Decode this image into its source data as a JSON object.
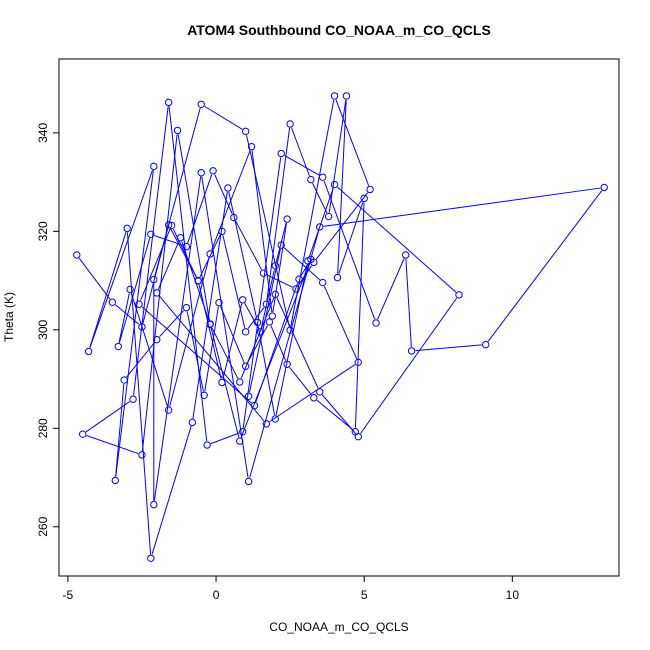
{
  "chart_data": {
    "type": "line",
    "title": "ATOM4 Southbound CO_NOAA_m_CO_QCLS",
    "xlabel": "CO_NOAA_m_CO_QCLS",
    "ylabel": "Theta (K)",
    "xlim": [
      -5.3,
      13.6
    ],
    "ylim": [
      250,
      355
    ],
    "x_ticks": [
      -5,
      0,
      5,
      10
    ],
    "y_ticks": [
      260,
      280,
      300,
      320,
      340
    ],
    "x_tick_labels": [
      "-5",
      "0",
      "5",
      "10"
    ],
    "y_tick_labels": [
      "260",
      "280",
      "300",
      "320",
      "340"
    ],
    "grid": false,
    "legend": "none",
    "marker": "open-circle",
    "color": "#0000ff",
    "series": [
      {
        "x": [
          -4.7,
          -3.5,
          -2.5,
          -1.6,
          -0.6,
          0.2,
          1.0,
          1.7,
          2.5,
          3.2,
          3.8,
          4.4,
          4.1,
          5.0,
          4.7,
          3.3,
          2.4,
          1.8,
          1.0,
          0.1,
          -0.4,
          -1.0,
          -2.0,
          -3.1,
          -3.4,
          -2.1,
          -4.3,
          -3.0,
          -2.2,
          -0.8,
          0.4,
          1.4,
          2.0,
          3.1,
          4.0,
          8.2,
          4.8,
          3.5,
          2.0,
          0.8,
          -0.2,
          -1.3,
          -2.5,
          -4.5,
          -2.8,
          -1.6,
          -0.3,
          0.9,
          2.2,
          3.6,
          5.4,
          6.4,
          6.6,
          9.1,
          13.1,
          3.5,
          1.1,
          -0.5,
          -2.1,
          -2.1,
          -0.5,
          1.0,
          2.5,
          4.0,
          5.2,
          3.3,
          2.7,
          1.6,
          0.6,
          -0.1,
          -1.0,
          -2.2,
          -3.3,
          -2.9,
          -1.6,
          -0.2,
          1.2,
          1.9,
          2.4,
          2.0,
          1.5,
          0.9,
          0.2,
          -0.6,
          -1.5,
          -2.6,
          1.3,
          2.8,
          3.2,
          0.8,
          -0.2,
          -1.2,
          -2.0,
          1.7,
          4.8,
          3.6,
          2.2,
          1.1
        ],
        "y": [
          315.2,
          305.6,
          300.6,
          321.3,
          310.0,
          320.0,
          299.6,
          305.2,
          341.8,
          330.5,
          323.0,
          347.5,
          310.6,
          326.7,
          279.3,
          286.2,
          293.0,
          301.6,
          292.6,
          305.5,
          286.7,
          304.5,
          298.0,
          289.8,
          269.4,
          333.2,
          295.6,
          320.6,
          253.6,
          281.2,
          328.8,
          301.5,
          281.9,
          314.0,
          329.5,
          307.1,
          278.3,
          287.4,
          307.2,
          289.4,
          301.1,
          340.5,
          274.6,
          278.8,
          285.9,
          346.2,
          276.6,
          279.3,
          335.8,
          331.0,
          301.4,
          315.2,
          295.7,
          297.0,
          328.9,
          320.9,
          269.2,
          331.9,
          264.5,
          310.2,
          345.8,
          340.3,
          299.9,
          347.5,
          328.5,
          313.7,
          308.3,
          311.5,
          322.8,
          332.3,
          316.9,
          319.4,
          296.6,
          308.2,
          283.7,
          315.4,
          337.2,
          302.8,
          322.5,
          313.0,
          299.6,
          306.1,
          289.3,
          309.9,
          321.2,
          305.2,
          284.6,
          310.3,
          314.3,
          277.4,
          301.2,
          318.7,
          307.5,
          280.9,
          293.4,
          309.6,
          317.2,
          286.5
        ]
      }
    ]
  }
}
